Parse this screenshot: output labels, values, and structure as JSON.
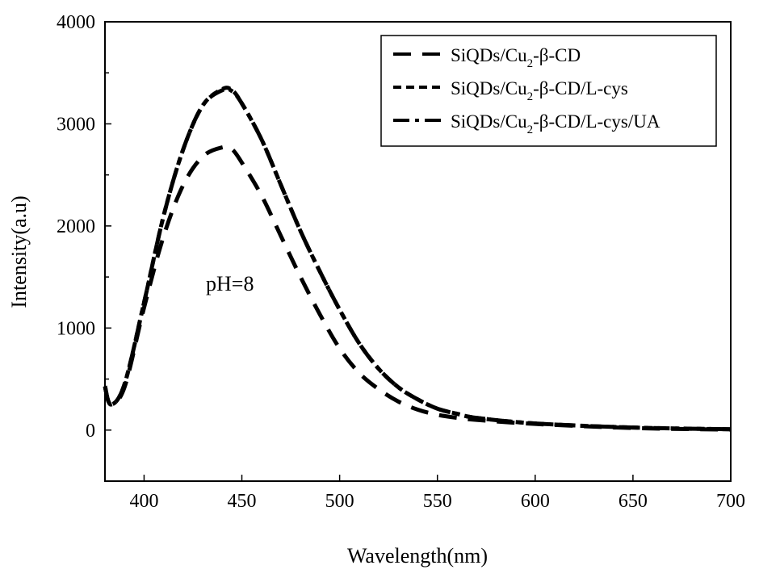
{
  "chart_data": {
    "type": "line",
    "title": "",
    "xlabel": "Wavelength(nm)",
    "ylabel": "Intensity(a.u)",
    "xlim": [
      380,
      700
    ],
    "ylim": [
      -500,
      4000
    ],
    "xticks": [
      400,
      450,
      500,
      550,
      600,
      650,
      700
    ],
    "yticks": [
      0,
      1000,
      2000,
      3000,
      4000
    ],
    "annotation": "pH=8",
    "legend_position": "top-right",
    "series": [
      {
        "name": "SiQDs/Cu2-β-CD",
        "legend_main": "SiQDs/Cu",
        "legend_sub": "2",
        "legend_tail": "-β-CD",
        "dash": "dash",
        "x": [
          380,
          383,
          390,
          400,
          410,
          420,
          430,
          440,
          445,
          450,
          460,
          470,
          480,
          490,
          500,
          510,
          520,
          530,
          540,
          550,
          560,
          570,
          600,
          650,
          700
        ],
        "y": [
          420,
          260,
          420,
          1200,
          1900,
          2400,
          2680,
          2770,
          2750,
          2620,
          2300,
          1900,
          1500,
          1130,
          800,
          560,
          400,
          280,
          200,
          150,
          120,
          100,
          60,
          20,
          5
        ]
      },
      {
        "name": "SiQDs/Cu2-β-CD/L-cys",
        "legend_main": "SiQDs/Cu",
        "legend_sub": "2",
        "legend_tail": "-β-CD/L-cys",
        "dash": "short-dash",
        "x": [
          380,
          383,
          390,
          400,
          410,
          420,
          430,
          440,
          445,
          450,
          460,
          470,
          480,
          490,
          500,
          510,
          520,
          530,
          540,
          550,
          560,
          570,
          600,
          650,
          700
        ],
        "y": [
          430,
          250,
          450,
          1250,
          2100,
          2750,
          3180,
          3340,
          3330,
          3200,
          2850,
          2400,
          1950,
          1550,
          1180,
          850,
          600,
          420,
          300,
          210,
          160,
          120,
          65,
          25,
          8
        ]
      },
      {
        "name": "SiQDs/Cu2-β-CD/L-cys/UA",
        "legend_main": "SiQDs/Cu",
        "legend_sub": "2",
        "legend_tail": "-β-CD/L-cys/UA",
        "dash": "dash-dot",
        "x": [
          380,
          383,
          390,
          400,
          410,
          420,
          430,
          440,
          445,
          450,
          460,
          470,
          480,
          490,
          500,
          510,
          520,
          530,
          540,
          550,
          560,
          570,
          600,
          650,
          700
        ],
        "y": [
          430,
          250,
          450,
          1250,
          2100,
          2750,
          3180,
          3330,
          3320,
          3200,
          2850,
          2400,
          1950,
          1550,
          1180,
          850,
          600,
          420,
          300,
          210,
          160,
          120,
          65,
          25,
          8
        ]
      }
    ]
  }
}
